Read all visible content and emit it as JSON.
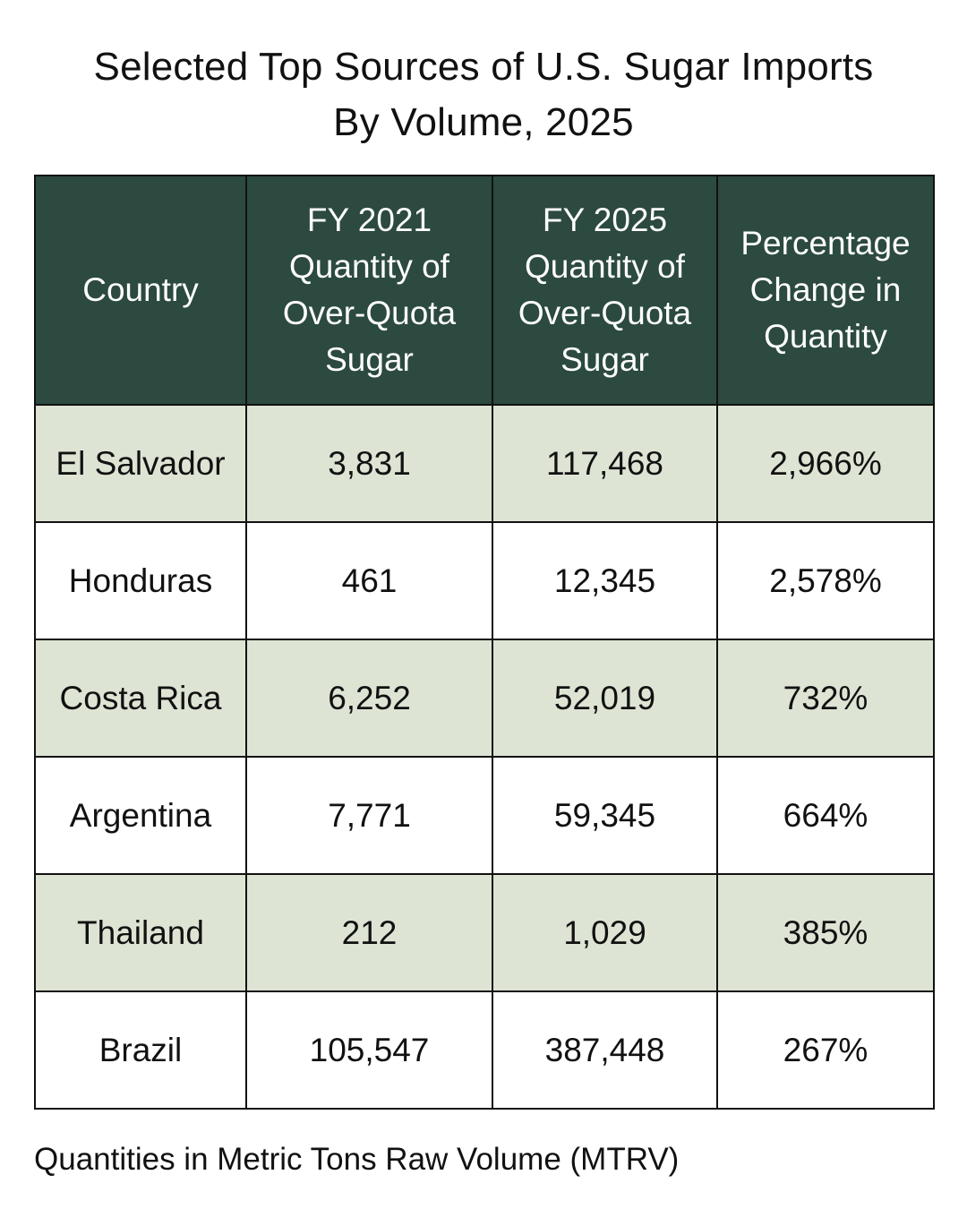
{
  "chart_data": {
    "type": "table",
    "title_lines": [
      "Selected Top Sources of U.S. Sugar Imports",
      "By Volume, 2025"
    ],
    "columns": [
      "Country",
      "FY 2021 Quantity of Over-Quota Sugar",
      "FY 2025 Quantity of Over-Quota Sugar",
      "Percentage Change in Quantity"
    ],
    "rows": [
      [
        "El Salvador",
        "3,831",
        "117,468",
        "2,966%"
      ],
      [
        "Honduras",
        "461",
        "12,345",
        "2,578%"
      ],
      [
        "Costa Rica",
        "6,252",
        "52,019",
        "732%"
      ],
      [
        "Argentina",
        "7,771",
        "59,345",
        "664%"
      ],
      [
        "Thailand",
        "212",
        "1,029",
        "385%"
      ],
      [
        "Brazil",
        "105,547",
        "387,448",
        "267%"
      ]
    ],
    "footnote": "Quantities in Metric Tons Raw Volume (MTRV)"
  },
  "colors": {
    "header_bg": "#2c4a3f",
    "header_text": "#ffffff",
    "shaded_row": "#dde4d4",
    "plain_row": "#ffffff",
    "border": "#111111"
  }
}
